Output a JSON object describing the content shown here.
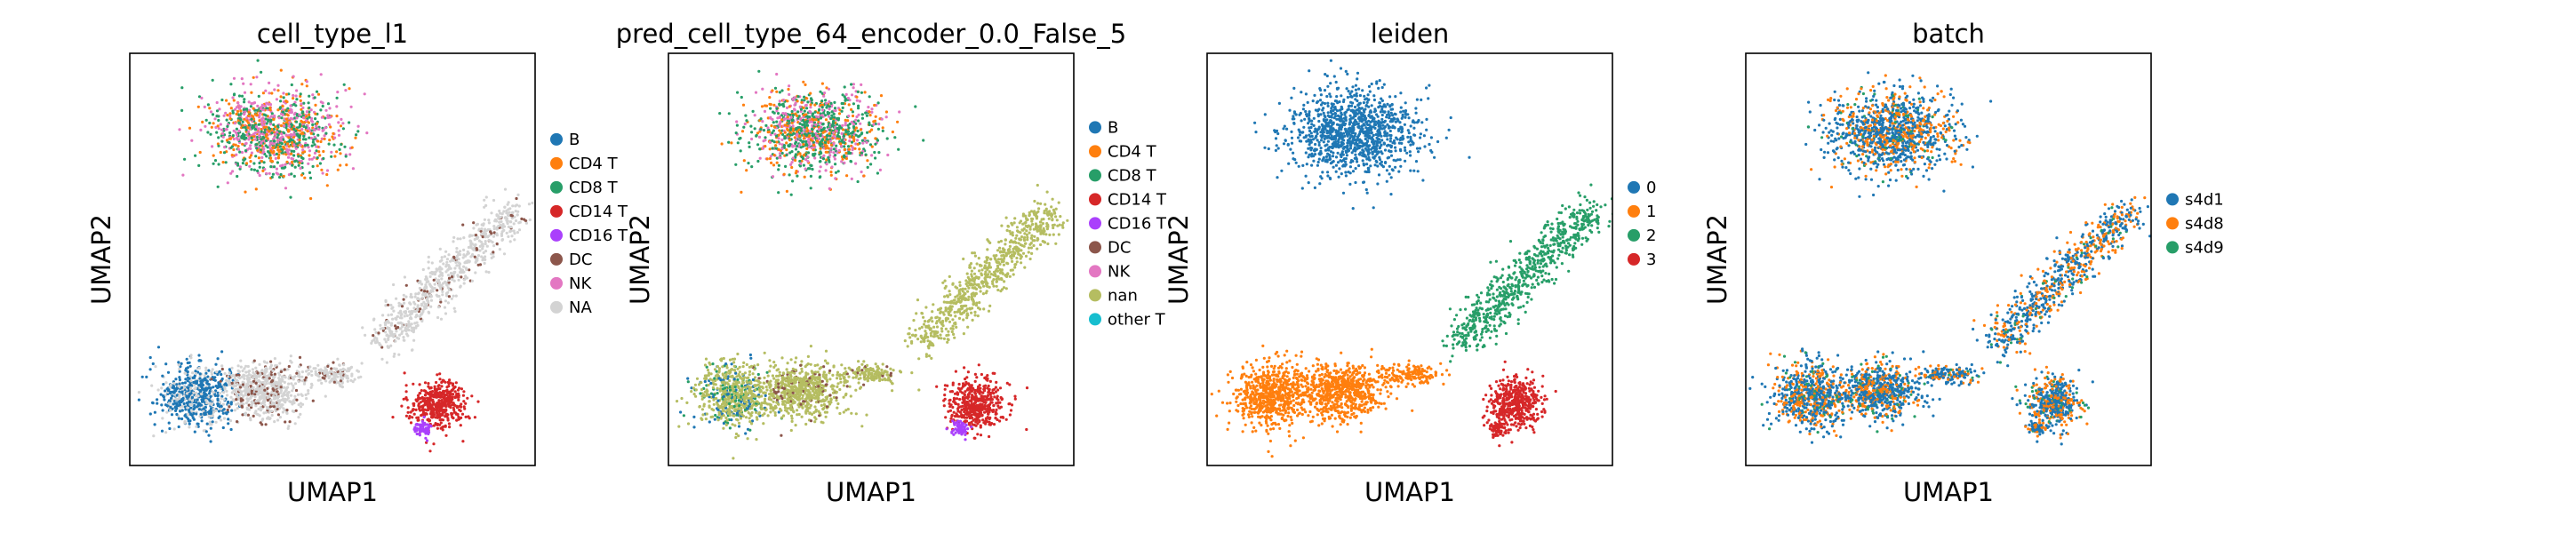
{
  "chart_data": [
    {
      "type": "scatter",
      "title": "cell_type_l1",
      "xlabel": "UMAP1",
      "ylabel": "UMAP2",
      "ticks": false,
      "legend_placement": "right",
      "legend": [
        {
          "label": "B",
          "color": "#1f77b4"
        },
        {
          "label": "CD4 T",
          "color": "#ff7f0e"
        },
        {
          "label": "CD8 T",
          "color": "#279e68"
        },
        {
          "label": "CD14 T",
          "color": "#d62728"
        },
        {
          "label": "CD16 T",
          "color": "#aa40fc"
        },
        {
          "label": "DC",
          "color": "#8c564b"
        },
        {
          "label": "NK",
          "color": "#e377c2"
        },
        {
          "label": "NA",
          "color": "#d3d3d3"
        }
      ]
    },
    {
      "type": "scatter",
      "title": "pred_cell_type_64_encoder_0.0_False_5",
      "xlabel": "UMAP1",
      "ylabel": "UMAP2",
      "ticks": false,
      "legend_placement": "right",
      "legend": [
        {
          "label": "B",
          "color": "#1f77b4"
        },
        {
          "label": "CD4 T",
          "color": "#ff7f0e"
        },
        {
          "label": "CD8 T",
          "color": "#279e68"
        },
        {
          "label": "CD14 T",
          "color": "#d62728"
        },
        {
          "label": "CD16 T",
          "color": "#aa40fc"
        },
        {
          "label": "DC",
          "color": "#8c564b"
        },
        {
          "label": "NK",
          "color": "#e377c2"
        },
        {
          "label": "nan",
          "color": "#b5bd61"
        },
        {
          "label": "other T",
          "color": "#17becf"
        }
      ]
    },
    {
      "type": "scatter",
      "title": "leiden",
      "xlabel": "UMAP1",
      "ylabel": "UMAP2",
      "ticks": false,
      "legend_placement": "right",
      "legend": [
        {
          "label": "0",
          "color": "#1f77b4"
        },
        {
          "label": "1",
          "color": "#ff7f0e"
        },
        {
          "label": "2",
          "color": "#279e68"
        },
        {
          "label": "3",
          "color": "#d62728"
        }
      ]
    },
    {
      "type": "scatter",
      "title": "batch",
      "xlabel": "UMAP1",
      "ylabel": "UMAP2",
      "ticks": false,
      "legend_placement": "right",
      "legend": [
        {
          "label": "s4d1",
          "color": "#1f77b4"
        },
        {
          "label": "s4d8",
          "color": "#ff7f0e"
        },
        {
          "label": "s4d9",
          "color": "#279e68"
        }
      ]
    }
  ]
}
